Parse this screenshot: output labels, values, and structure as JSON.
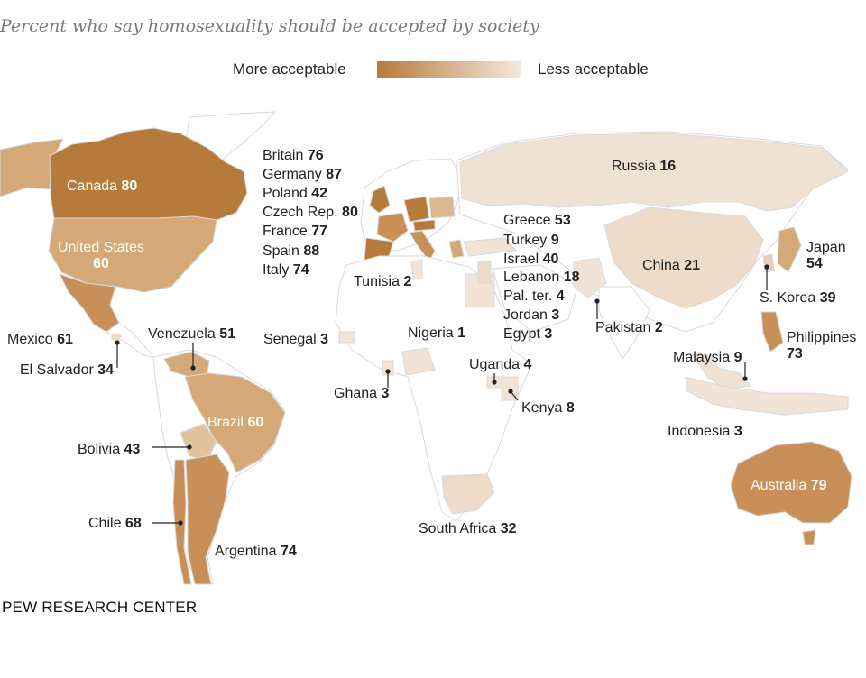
{
  "subtitle": "Percent who say homosexuality should be accepted by society",
  "legend": {
    "more_label": "More acceptable",
    "less_label": "Less acceptable",
    "color_more": "#b67a3a",
    "color_less": "#f4e8dc"
  },
  "source": "PEW RESEARCH CENTER",
  "colors": {
    "ocean": "#ffffff",
    "land_base": "#ffffff",
    "border": "#d9d9d9",
    "low": "#eddcc9",
    "mid": "#d4a977",
    "high": "#b67a3a",
    "leader": "#222222"
  },
  "countries": [
    {
      "name": "Canada",
      "value": "80"
    },
    {
      "name": "United States",
      "value": "60"
    },
    {
      "name": "Mexico",
      "value": "61"
    },
    {
      "name": "El Salvador",
      "value": "34"
    },
    {
      "name": "Venezuela",
      "value": "51"
    },
    {
      "name": "Brazil",
      "value": "60"
    },
    {
      "name": "Bolivia",
      "value": "43"
    },
    {
      "name": "Chile",
      "value": "68"
    },
    {
      "name": "Argentina",
      "value": "74"
    },
    {
      "name": "Britain",
      "value": "76"
    },
    {
      "name": "Germany",
      "value": "87"
    },
    {
      "name": "Poland",
      "value": "42"
    },
    {
      "name": "Czech Rep.",
      "value": "80"
    },
    {
      "name": "France",
      "value": "77"
    },
    {
      "name": "Spain",
      "value": "88"
    },
    {
      "name": "Italy",
      "value": "74"
    },
    {
      "name": "Tunisia",
      "value": "2"
    },
    {
      "name": "Senegal",
      "value": "3"
    },
    {
      "name": "Nigeria",
      "value": "1"
    },
    {
      "name": "Ghana",
      "value": "3"
    },
    {
      "name": "Uganda",
      "value": "4"
    },
    {
      "name": "Kenya",
      "value": "8"
    },
    {
      "name": "South Africa",
      "value": "32"
    },
    {
      "name": "Greece",
      "value": "53"
    },
    {
      "name": "Turkey",
      "value": "9"
    },
    {
      "name": "Israel",
      "value": "40"
    },
    {
      "name": "Lebanon",
      "value": "18"
    },
    {
      "name": "Pal. ter.",
      "value": "4"
    },
    {
      "name": "Jordan",
      "value": "3"
    },
    {
      "name": "Egypt",
      "value": "3"
    },
    {
      "name": "Russia",
      "value": "16"
    },
    {
      "name": "China",
      "value": "21"
    },
    {
      "name": "Pakistan",
      "value": "2"
    },
    {
      "name": "Japan",
      "value": "54"
    },
    {
      "name": "S. Korea",
      "value": "39"
    },
    {
      "name": "Philippines",
      "value": "73"
    },
    {
      "name": "Malaysia",
      "value": "9"
    },
    {
      "name": "Indonesia",
      "value": "3"
    },
    {
      "name": "Australia",
      "value": "79"
    }
  ]
}
